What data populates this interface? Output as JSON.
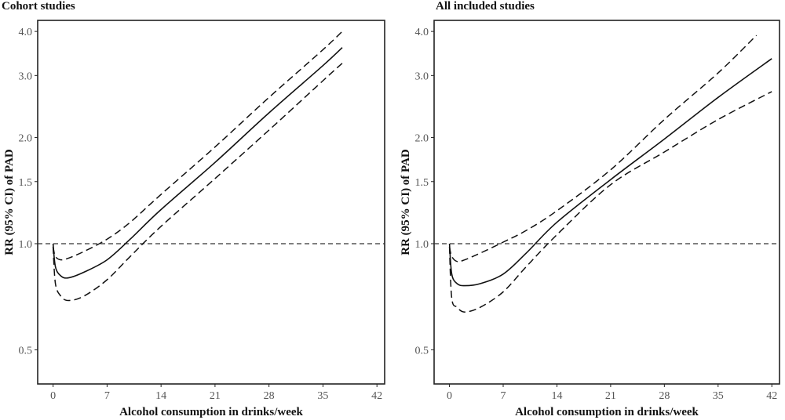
{
  "chart_data": [
    {
      "type": "line",
      "title": "Cohort studies",
      "xlabel": "Alcohol consumption in drinks/week",
      "ylabel": "RR (95% CI) of PAD",
      "x_ticks": [
        0,
        7,
        14,
        21,
        28,
        35,
        42
      ],
      "y_ticks": [
        0.5,
        1.0,
        1.5,
        2.0,
        3.0,
        4.0
      ],
      "y_tick_labels": [
        "0.5",
        "1.0",
        "1.5",
        "2.0",
        "3.0",
        "4.0"
      ],
      "xlim": [
        -2,
        43
      ],
      "y_scale": "log",
      "ylim": [
        0.4,
        4.3
      ],
      "reference_line": 1.0,
      "series": [
        {
          "style": "solid",
          "points": [
            [
              0,
              1.0
            ],
            [
              0.3,
              0.86
            ],
            [
              1,
              0.81
            ],
            [
              2,
              0.8
            ],
            [
              4,
              0.83
            ],
            [
              7,
              0.9
            ],
            [
              10,
              1.03
            ],
            [
              14,
              1.25
            ],
            [
              21,
              1.7
            ],
            [
              28,
              2.35
            ],
            [
              35,
              3.2
            ],
            [
              37.5,
              3.6
            ]
          ]
        },
        {
          "style": "dashed",
          "points": [
            [
              0,
              0.98
            ],
            [
              0.3,
              0.92
            ],
            [
              1,
              0.9
            ],
            [
              2,
              0.91
            ],
            [
              4,
              0.95
            ],
            [
              7,
              1.03
            ],
            [
              10,
              1.15
            ],
            [
              14,
              1.38
            ],
            [
              21,
              1.88
            ],
            [
              28,
              2.6
            ],
            [
              35,
              3.55
            ],
            [
              37.5,
              4.0
            ]
          ]
        },
        {
          "style": "dashed",
          "points": [
            [
              0,
              0.98
            ],
            [
              0.3,
              0.77
            ],
            [
              1,
              0.71
            ],
            [
              2,
              0.69
            ],
            [
              4,
              0.71
            ],
            [
              7,
              0.79
            ],
            [
              10,
              0.92
            ],
            [
              14,
              1.12
            ],
            [
              21,
              1.53
            ],
            [
              28,
              2.1
            ],
            [
              35,
              2.9
            ],
            [
              37.5,
              3.25
            ]
          ]
        }
      ]
    },
    {
      "type": "line",
      "title": "All included studies",
      "xlabel": "Alcohol consumption in drinks/week",
      "ylabel": "RR (95% CI) of PAD",
      "x_ticks": [
        0,
        7,
        14,
        21,
        28,
        35,
        42
      ],
      "y_ticks": [
        0.5,
        1.0,
        1.5,
        2.0,
        3.0,
        4.0
      ],
      "y_tick_labels": [
        "0.5",
        "1.0",
        "1.5",
        "2.0",
        "3.0",
        "4.0"
      ],
      "xlim": [
        -2,
        43
      ],
      "y_scale": "log",
      "ylim": [
        0.4,
        4.3
      ],
      "reference_line": 1.0,
      "series": [
        {
          "style": "solid",
          "points": [
            [
              0,
              1.0
            ],
            [
              0.3,
              0.82
            ],
            [
              1,
              0.77
            ],
            [
              2,
              0.76
            ],
            [
              4,
              0.77
            ],
            [
              7,
              0.82
            ],
            [
              10,
              0.94
            ],
            [
              14,
              1.15
            ],
            [
              21,
              1.52
            ],
            [
              28,
              1.98
            ],
            [
              35,
              2.6
            ],
            [
              42,
              3.35
            ]
          ]
        },
        {
          "style": "dashed",
          "points": [
            [
              0,
              0.98
            ],
            [
              0.3,
              0.92
            ],
            [
              1,
              0.89
            ],
            [
              2,
              0.9
            ],
            [
              4,
              0.94
            ],
            [
              7,
              1.01
            ],
            [
              10,
              1.09
            ],
            [
              14,
              1.24
            ],
            [
              21,
              1.62
            ],
            [
              28,
              2.25
            ],
            [
              35,
              3.05
            ],
            [
              40,
              3.9
            ]
          ]
        },
        {
          "style": "dashed",
          "points": [
            [
              0,
              0.98
            ],
            [
              0.3,
              0.7
            ],
            [
              1,
              0.66
            ],
            [
              2,
              0.64
            ],
            [
              4,
              0.66
            ],
            [
              7,
              0.73
            ],
            [
              10,
              0.86
            ],
            [
              14,
              1.06
            ],
            [
              21,
              1.47
            ],
            [
              28,
              1.82
            ],
            [
              35,
              2.25
            ],
            [
              42,
              2.7
            ]
          ]
        }
      ]
    }
  ]
}
